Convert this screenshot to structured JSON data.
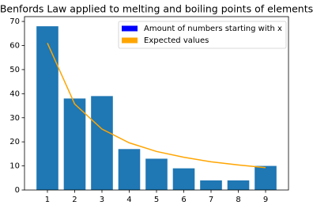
{
  "chart_data": {
    "type": "bar",
    "title": "Benfords Law applied to melting and boiling points of elements",
    "x": [
      1,
      2,
      3,
      4,
      5,
      6,
      7,
      8,
      9
    ],
    "series": [
      {
        "name": "Amount of numbers starting with x",
        "type": "bar",
        "color": "#1f77b4",
        "legend_color": "#0000ff",
        "bar_width": 0.8,
        "values": [
          68,
          38,
          39,
          17,
          13,
          9,
          4,
          4,
          10
        ]
      },
      {
        "name": "Expected values",
        "type": "line",
        "color": "#ffa500",
        "legend_color": "#ffa500",
        "values": [
          61.0,
          35.7,
          25.3,
          19.6,
          16.0,
          13.6,
          11.7,
          10.4,
          9.3
        ]
      }
    ],
    "xlim": [
      0.16,
      9.84
    ],
    "xticks": [
      1,
      2,
      3,
      4,
      5,
      6,
      7,
      8,
      9
    ],
    "ylim": [
      0,
      72
    ],
    "yticks": [
      0,
      10,
      20,
      30,
      40,
      50,
      60,
      70
    ],
    "legend": "upper right"
  }
}
